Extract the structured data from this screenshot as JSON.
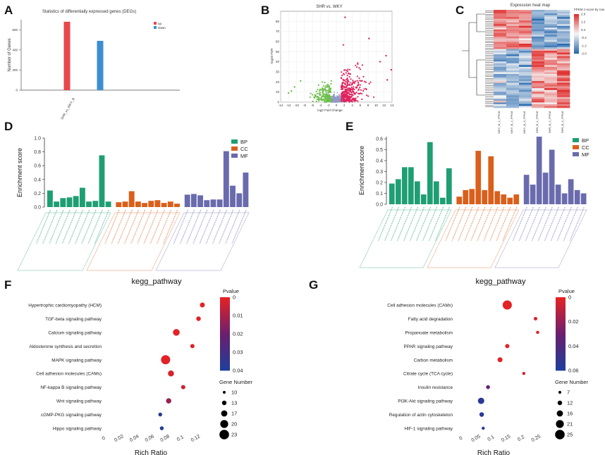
{
  "panel_labels": {
    "A": "A",
    "B": "B",
    "C": "C",
    "D": "D",
    "E": "E",
    "F": "F",
    "G": "G"
  },
  "chart_data": [
    {
      "panel": "A",
      "type": "bar",
      "title": "Statistics of differentially expressed genes (DEGs)",
      "categories": [
        "up",
        "down"
      ],
      "values": [
        680,
        490
      ],
      "colors": [
        "#e8464b",
        "#3b8fd1"
      ],
      "xlabel": "SHR_vs_WKY_B",
      "ylabel": "Number of Genes",
      "ylim": [
        0,
        700
      ],
      "yticks": [
        "0",
        "200",
        "400",
        "600"
      ],
      "legend": [
        "up",
        "down"
      ]
    },
    {
      "panel": "B",
      "type": "scatter",
      "title": "SHR vs. WKY",
      "xlabel": "log2 Fold Change",
      "ylabel": "-log10 FDR",
      "xlim": [
        -14,
        14
      ],
      "ylim": [
        0,
        90
      ],
      "xticks": [
        "-14",
        "-12",
        "-10",
        "-8",
        "-6",
        "-4",
        "-2",
        "0",
        "2",
        "4",
        "6",
        "8",
        "10",
        "12",
        "14"
      ],
      "yticks": [
        "0",
        "10",
        "20",
        "30",
        "40",
        "50",
        "60",
        "70",
        "80"
      ],
      "series": [
        {
          "name": "down",
          "color": "#6cbf4a"
        },
        {
          "name": "up",
          "color": "#e0245e"
        },
        {
          "name": "not significant",
          "color": "#8f99c4"
        }
      ]
    },
    {
      "panel": "C",
      "type": "heatmap",
      "title": "Expression heat map",
      "samples": [
        "WKY_B_1_FPKM",
        "WKY_B_2_FPKM",
        "WKY_B_3_FPKM",
        "SHR_B_1_FPKM",
        "SHR_B_2_FPKM",
        "SHR_B_3_FPKM"
      ],
      "colorbar_title": "FPKM z-score by row",
      "colorbar_ticks": [
        "2.0",
        "1.2",
        "0.4",
        "-0.4",
        "-1.2",
        "-2.0"
      ],
      "range": [
        -2.0,
        2.0
      ]
    },
    {
      "panel": "D",
      "type": "bar",
      "ylabel": "Enrichment score",
      "ylim": [
        0,
        1.0
      ],
      "yticks": [
        "0.0",
        "0.2",
        "0.4",
        "0.6",
        "0.8",
        "1.0"
      ],
      "legend": [
        "BP",
        "CC",
        "MF"
      ],
      "colors": {
        "BP": "#1f9e74",
        "CC": "#d95f1b",
        "MF": "#6a6bad"
      },
      "series": [
        {
          "name": "BP",
          "values": [
            0.24,
            0.08,
            0.13,
            0.14,
            0.16,
            0.28,
            0.08,
            0.09,
            0.75,
            0.08
          ]
        },
        {
          "name": "CC",
          "values": [
            0.07,
            0.08,
            0.23,
            0.08,
            0.06,
            0.09,
            0.1,
            0.06,
            0.08,
            0.05
          ]
        },
        {
          "name": "MF",
          "values": [
            0.18,
            0.19,
            0.17,
            0.1,
            0.11,
            0.11,
            0.81,
            0.31,
            0.2,
            0.5
          ]
        }
      ]
    },
    {
      "panel": "E",
      "type": "bar",
      "ylabel": "Enrichment score",
      "ylim": [
        0,
        0.62
      ],
      "yticks": [
        "0.0",
        "0.1",
        "0.2",
        "0.3",
        "0.4",
        "0.5",
        "0.6"
      ],
      "legend": [
        "BP",
        "CC",
        "MF"
      ],
      "colors": {
        "BP": "#1f9e74",
        "CC": "#d95f1b",
        "MF": "#6a6bad"
      },
      "series": [
        {
          "name": "BP",
          "values": [
            0.19,
            0.23,
            0.34,
            0.34,
            0.21,
            0.09,
            0.57,
            0.21,
            0.06,
            0.33
          ]
        },
        {
          "name": "CC",
          "values": [
            0.07,
            0.13,
            0.14,
            0.49,
            0.13,
            0.44,
            0.12,
            0.09,
            0.06,
            0.09
          ]
        },
        {
          "name": "MF",
          "values": [
            0.27,
            0.18,
            0.62,
            0.29,
            0.5,
            0.18,
            0.1,
            0.23,
            0.13,
            0.1
          ]
        }
      ]
    },
    {
      "panel": "F",
      "type": "scatter",
      "title": "kegg_pathway",
      "xlabel": "Rich Ratio",
      "xlim": [
        0,
        0.14
      ],
      "xticks": [
        "0",
        "0.02",
        "0.04",
        "0.06",
        "0.08",
        "0.1",
        "0.12"
      ],
      "pathways": [
        "Hypertrophic cardiomyopathy (HCM)",
        "TGF-beta signaling pathway",
        "Calcium signaling pathway",
        "Aldosterone synthesis and secretion",
        "MAPK signaling pathway",
        "Cell adhesion molecules (CAMs)",
        "NF-kappa B signaling pathway",
        "Wnt signaling pathway",
        "cGMP-PKG signaling pathway",
        "Hippo signaling pathway"
      ],
      "rich_ratio": [
        0.128,
        0.123,
        0.094,
        0.115,
        0.08,
        0.087,
        0.103,
        0.084,
        0.073,
        0.075
      ],
      "pvalue": [
        0.0,
        0.0,
        0.0,
        0.001,
        0.0,
        0.002,
        0.004,
        0.012,
        0.038,
        0.039
      ],
      "gene_number": [
        13,
        12,
        18,
        11,
        25,
        16,
        11,
        14,
        10,
        10
      ],
      "legend_pvalue_title": "Pvalue",
      "legend_pvalue_ticks": [
        "0",
        "0.01",
        "0.02",
        "0.03",
        "0.04"
      ],
      "legend_size_title": "Gene Number",
      "legend_size_ticks": [
        "10",
        "13",
        "17",
        "20",
        "23"
      ]
    },
    {
      "panel": "G",
      "type": "scatter",
      "title": "kegg_pathway",
      "xlabel": "Rich Ratio",
      "xlim": [
        -0.02,
        0.28
      ],
      "xticks": [
        "0",
        "0.05",
        "0.1",
        "0.15",
        "0.2",
        "0.25"
      ],
      "pathways": [
        "Cell adhesion molecules (CAMs)",
        "Fatty acid degradation",
        "Propanoate metabolism",
        "PPAR signaling pathway",
        "Carbon metabolism",
        "Citrate cycle (TCA cycle)",
        "Insulin resistance",
        "PI3K-Akt signaling pathway",
        "Regulation of actin cytoskeleton",
        "HIF-1 signaling pathway"
      ],
      "rich_ratio": [
        0.152,
        0.246,
        0.253,
        0.152,
        0.128,
        0.207,
        0.088,
        0.065,
        0.067,
        0.072
      ],
      "pvalue": [
        0.0,
        0.002,
        0.001,
        0.0,
        0.0,
        0.003,
        0.04,
        0.065,
        0.066,
        0.068
      ],
      "gene_number": [
        25,
        9,
        8,
        11,
        13,
        7,
        10,
        17,
        12,
        7
      ],
      "legend_pvalue_title": "Pvalue",
      "legend_pvalue_ticks": [
        "0",
        "0.02",
        "0.04",
        "0.06"
      ],
      "legend_size_title": "Gene Number",
      "legend_size_ticks": [
        "7",
        "12",
        "16",
        "21",
        "25"
      ]
    }
  ]
}
